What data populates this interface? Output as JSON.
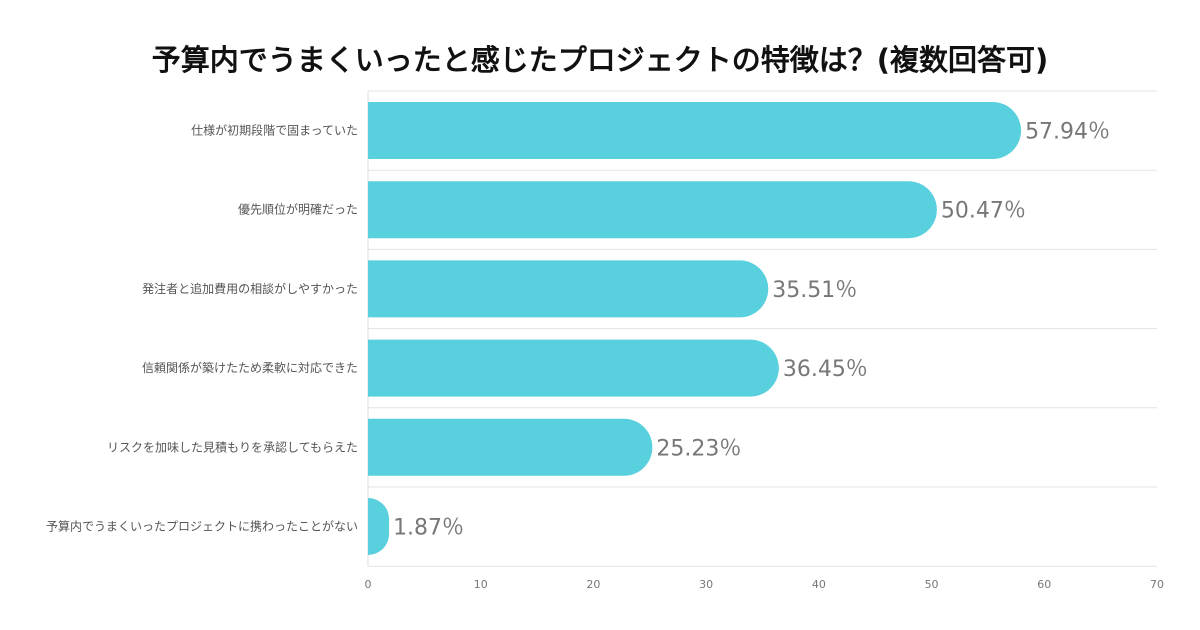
{
  "chart_data": {
    "type": "bar",
    "orientation": "horizontal",
    "title": "予算内でうまくいったと感じたプロジェクトの特徴は？(複数回答可)",
    "categories": [
      "仕様が初期段階で固まっていた",
      "優先順位が明確だった",
      "発注者と追加費用の相談がしやすかった",
      "信頼関係が築けたため柔軟に対応できた",
      "リスクを加味した見積もりを承認してもらえた",
      "予算内でうまくいったプロジェクトに携わったことがない"
    ],
    "values": [
      57.94,
      50.47,
      35.51,
      36.45,
      25.23,
      1.87
    ],
    "value_labels": [
      "57.94％",
      "50.47％",
      "35.51％",
      "36.45％",
      "25.23％",
      "1.87％"
    ],
    "xlim": [
      0,
      70
    ],
    "xticks": [
      "0",
      "10",
      "20",
      "30",
      "40",
      "50",
      "60",
      "70"
    ],
    "grid": true,
    "bar_color": "#58d0dd",
    "xlabel": "",
    "ylabel": ""
  }
}
